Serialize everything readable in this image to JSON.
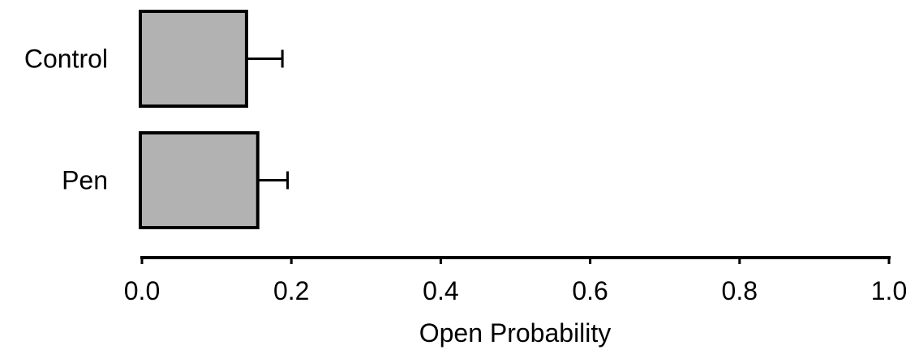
{
  "chart_data": {
    "type": "bar",
    "orientation": "horizontal",
    "categories": [
      "Control",
      "Pen"
    ],
    "values": [
      0.14,
      0.155
    ],
    "error": [
      0.048,
      0.04
    ],
    "xlabel": "Open Probability",
    "ylabel": "",
    "xlim": [
      0.0,
      1.0
    ],
    "xticks": [
      "0.0",
      "0.2",
      "0.4",
      "0.6",
      "0.8",
      "1.0"
    ],
    "grid": false,
    "legend": "none",
    "bar_color": "#b2b2b2",
    "edge_color": "#000000"
  }
}
